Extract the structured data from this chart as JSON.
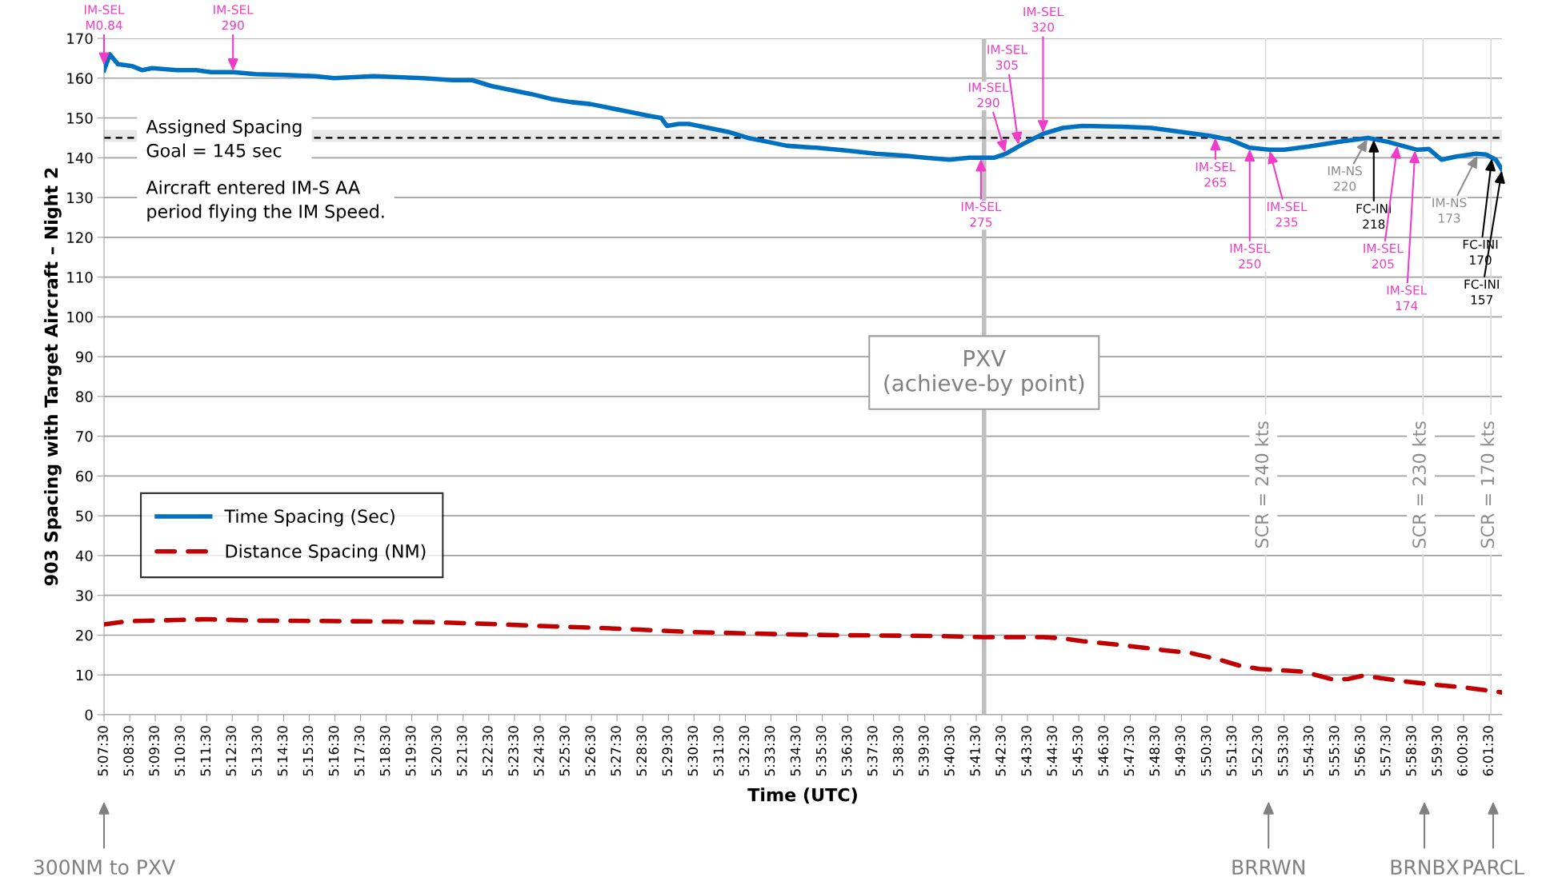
{
  "chart_data": {
    "type": "line",
    "xlabel": "Time (UTC)",
    "ylabel": "903 Spacing with Target Aircraft – Night 2",
    "xlim": [
      5.125,
      6.0333
    ],
    "ylim": [
      0,
      170
    ],
    "yticks": [
      0,
      10,
      20,
      30,
      40,
      50,
      60,
      70,
      80,
      90,
      100,
      110,
      120,
      130,
      140,
      150,
      160,
      170
    ],
    "xticks": [
      {
        "value": 5.125,
        "label": "5:07:30"
      },
      {
        "value": 5.1417,
        "label": "5:08:30"
      },
      {
        "value": 5.1583,
        "label": "5:09:30"
      },
      {
        "value": 5.175,
        "label": "5:10:30"
      },
      {
        "value": 5.1917,
        "label": "5:11:30"
      },
      {
        "value": 5.2083,
        "label": "5:12:30"
      },
      {
        "value": 5.225,
        "label": "5:13:30"
      },
      {
        "value": 5.2417,
        "label": "5:14:30"
      },
      {
        "value": 5.2583,
        "label": "5:15:30"
      },
      {
        "value": 5.275,
        "label": "5:16:30"
      },
      {
        "value": 5.2917,
        "label": "5:17:30"
      },
      {
        "value": 5.3083,
        "label": "5:18:30"
      },
      {
        "value": 5.325,
        "label": "5:19:30"
      },
      {
        "value": 5.3417,
        "label": "5:20:30"
      },
      {
        "value": 5.3583,
        "label": "5:21:30"
      },
      {
        "value": 5.375,
        "label": "5:22:30"
      },
      {
        "value": 5.3917,
        "label": "5:23:30"
      },
      {
        "value": 5.4083,
        "label": "5:24:30"
      },
      {
        "value": 5.425,
        "label": "5:25:30"
      },
      {
        "value": 5.4417,
        "label": "5:26:30"
      },
      {
        "value": 5.4583,
        "label": "5:27:30"
      },
      {
        "value": 5.475,
        "label": "5:28:30"
      },
      {
        "value": 5.4917,
        "label": "5:29:30"
      },
      {
        "value": 5.5083,
        "label": "5:30:30"
      },
      {
        "value": 5.525,
        "label": "5:31:30"
      },
      {
        "value": 5.5417,
        "label": "5:32:30"
      },
      {
        "value": 5.5583,
        "label": "5:33:30"
      },
      {
        "value": 5.575,
        "label": "5:34:30"
      },
      {
        "value": 5.5917,
        "label": "5:35:30"
      },
      {
        "value": 5.6083,
        "label": "5:36:30"
      },
      {
        "value": 5.625,
        "label": "5:37:30"
      },
      {
        "value": 5.6417,
        "label": "5:38:30"
      },
      {
        "value": 5.6583,
        "label": "5:39:30"
      },
      {
        "value": 5.675,
        "label": "5:40:30"
      },
      {
        "value": 5.6917,
        "label": "5:41:30"
      },
      {
        "value": 5.7083,
        "label": "5:42:30"
      },
      {
        "value": 5.725,
        "label": "5:43:30"
      },
      {
        "value": 5.7417,
        "label": "5:44:30"
      },
      {
        "value": 5.7583,
        "label": "5:45:30"
      },
      {
        "value": 5.775,
        "label": "5:46:30"
      },
      {
        "value": 5.7917,
        "label": "5:47:30"
      },
      {
        "value": 5.8083,
        "label": "5:48:30"
      },
      {
        "value": 5.825,
        "label": "5:49:30"
      },
      {
        "value": 5.8417,
        "label": "5:50:30"
      },
      {
        "value": 5.8583,
        "label": "5:51:30"
      },
      {
        "value": 5.875,
        "label": "5:52:30"
      },
      {
        "value": 5.8917,
        "label": "5:53:30"
      },
      {
        "value": 5.9083,
        "label": "5:54:30"
      },
      {
        "value": 5.925,
        "label": "5:55:30"
      },
      {
        "value": 5.9417,
        "label": "5:56:30"
      },
      {
        "value": 5.9583,
        "label": "5:57:30"
      },
      {
        "value": 5.975,
        "label": "5:58:30"
      },
      {
        "value": 5.9917,
        "label": "5:59:30"
      },
      {
        "value": 6.0083,
        "label": "6:00:30"
      },
      {
        "value": 6.025,
        "label": "6:01:30"
      }
    ],
    "grid": "y",
    "legend": "bottom left",
    "series": [
      {
        "name": "Time Spacing (Sec)",
        "color": "#0070c0",
        "line_style": "solid",
        "x": [
          5.125,
          5.1288,
          5.134,
          5.1435,
          5.1499,
          5.1563,
          5.1723,
          5.1851,
          5.1947,
          5.2088,
          5.2235,
          5.2427,
          5.2619,
          5.2747,
          5.3002,
          5.313,
          5.3322,
          5.3514,
          5.3642,
          5.377,
          5.3898,
          5.4026,
          5.4154,
          5.4281,
          5.4409,
          5.4537,
          5.4665,
          5.4793,
          5.487,
          5.4908,
          5.4985,
          5.5049,
          5.5177,
          5.5305,
          5.5433,
          5.5561,
          5.5688,
          5.588,
          5.6072,
          5.6264,
          5.6456,
          5.6584,
          5.6744,
          5.6872,
          5.7032,
          5.7108,
          5.7223,
          5.7351,
          5.7479,
          5.7607,
          5.7863,
          5.8055,
          5.8247,
          5.8439,
          5.8566,
          5.8694,
          5.8822,
          5.8918,
          5.9078,
          5.927,
          5.9462,
          5.959,
          5.9782,
          5.9858,
          5.9941,
          6.0037,
          6.0165,
          6.0229,
          6.0293,
          6.0333
        ],
        "values": [
          162,
          166,
          163.5,
          163,
          162,
          162.5,
          162,
          162,
          161.5,
          161.5,
          161,
          160.8,
          160.5,
          160,
          160.5,
          160.3,
          160,
          159.5,
          159.5,
          158,
          157,
          156,
          154.8,
          154,
          153.5,
          152.5,
          151.5,
          150.5,
          150,
          148,
          148.5,
          148.5,
          147.5,
          146.5,
          145,
          144,
          143,
          142.5,
          141.8,
          141,
          140.5,
          140,
          139.5,
          140,
          140,
          141,
          143.5,
          146,
          147.5,
          148,
          147.8,
          147.5,
          146.5,
          145.5,
          144.5,
          142.5,
          142,
          142,
          142.8,
          144,
          145,
          144,
          142,
          142.2,
          139.5,
          140.3,
          141,
          140.8,
          139.5,
          137
        ]
      },
      {
        "name": "Distance Spacing (NM)",
        "color": "#c00000",
        "line_style": "dashed",
        "x": [
          5.125,
          5.1404,
          5.1723,
          5.1915,
          5.2171,
          5.2491,
          5.313,
          5.345,
          5.377,
          5.409,
          5.4409,
          5.4729,
          5.5049,
          5.5369,
          5.5688,
          5.6008,
          5.6328,
          5.6648,
          5.6968,
          5.7351,
          5.7479,
          5.7607,
          5.7863,
          5.8119,
          5.8311,
          5.8502,
          5.863,
          5.8758,
          5.8886,
          5.9046,
          5.9142,
          5.9238,
          5.9334,
          5.943,
          5.9526,
          5.9718,
          5.9909,
          6.0101,
          6.0333
        ],
        "values": [
          22.7,
          23.5,
          23.8,
          24,
          23.7,
          23.6,
          23.4,
          23.2,
          22.8,
          22.3,
          21.9,
          21.4,
          20.8,
          20.5,
          20.2,
          20,
          19.9,
          19.8,
          19.5,
          19.5,
          19.2,
          18.5,
          17.5,
          16.3,
          15.5,
          13.8,
          12.3,
          11.5,
          11.2,
          10.8,
          9.8,
          8.8,
          9,
          9.8,
          9.3,
          8.3,
          7.5,
          6.8,
          5.6
        ]
      }
    ],
    "ref_lines": [
      {
        "axis": "x",
        "value": 5.6968,
        "label": "PXV\n(achieve-by point)",
        "color": "#bfbfbf"
      },
      {
        "axis": "x",
        "value": 5.8797,
        "color": "#d9d9d9"
      },
      {
        "axis": "x",
        "value": 5.982,
        "color": "#d9d9d9"
      },
      {
        "axis": "x",
        "value": 6.0261,
        "color": "#d9d9d9"
      },
      {
        "axis": "y",
        "value": 145,
        "color": "#000000",
        "line_style": "dashed"
      }
    ],
    "bands": [
      {
        "axis": "y",
        "from": 144,
        "to": 147,
        "color": "#e8e8e8"
      }
    ],
    "annotations": [
      "Assigned Spacing\nGoal = 145 sec",
      "Aircraft entered IM-S AA\nperiod flying the IM Speed.",
      {
        "text": "IM-SEL\nM0.84",
        "x": 5.125,
        "y": 163
      },
      {
        "text": "IM-SEL\n290",
        "x": 5.2088,
        "y": 161.5
      },
      {
        "text": "IM-SEL\n275",
        "x": 5.6948,
        "y": 140
      },
      {
        "text": "IM-SEL\n290",
        "x": 5.7108,
        "y": 141
      },
      {
        "text": "IM-SEL\n305",
        "x": 5.7192,
        "y": 143
      },
      {
        "text": "IM-SEL\n320",
        "x": 5.7351,
        "y": 146
      },
      {
        "text": "IM-SEL\n265",
        "x": 5.8471,
        "y": 145.3
      },
      {
        "text": "IM-SEL\n250",
        "x": 5.8694,
        "y": 142.5
      },
      {
        "text": "IM-SEL\n235",
        "x": 5.8822,
        "y": 142
      },
      {
        "text": "IM-NS\n220",
        "x": 5.9462,
        "y": 145
      },
      {
        "text": "FC-INI\n218",
        "x": 5.95,
        "y": 144.8
      },
      {
        "text": "IM-SEL\n205",
        "x": 5.9654,
        "y": 143.3
      },
      {
        "text": "IM-SEL\n174",
        "x": 5.9769,
        "y": 142.1
      },
      {
        "text": "IM-NS\n173",
        "x": 6.0178,
        "y": 140.8
      },
      {
        "text": "FC-INI\n170",
        "x": 6.0268,
        "y": 140.1
      },
      {
        "text": "FC-INI\n157",
        "x": 6.0333,
        "y": 137
      },
      "300NM to PXV",
      "BRRWN",
      "BRNBX",
      "PARCL",
      "SCR = 240 kts",
      "SCR = 230 kts",
      "SCR = 170 kts"
    ]
  }
}
